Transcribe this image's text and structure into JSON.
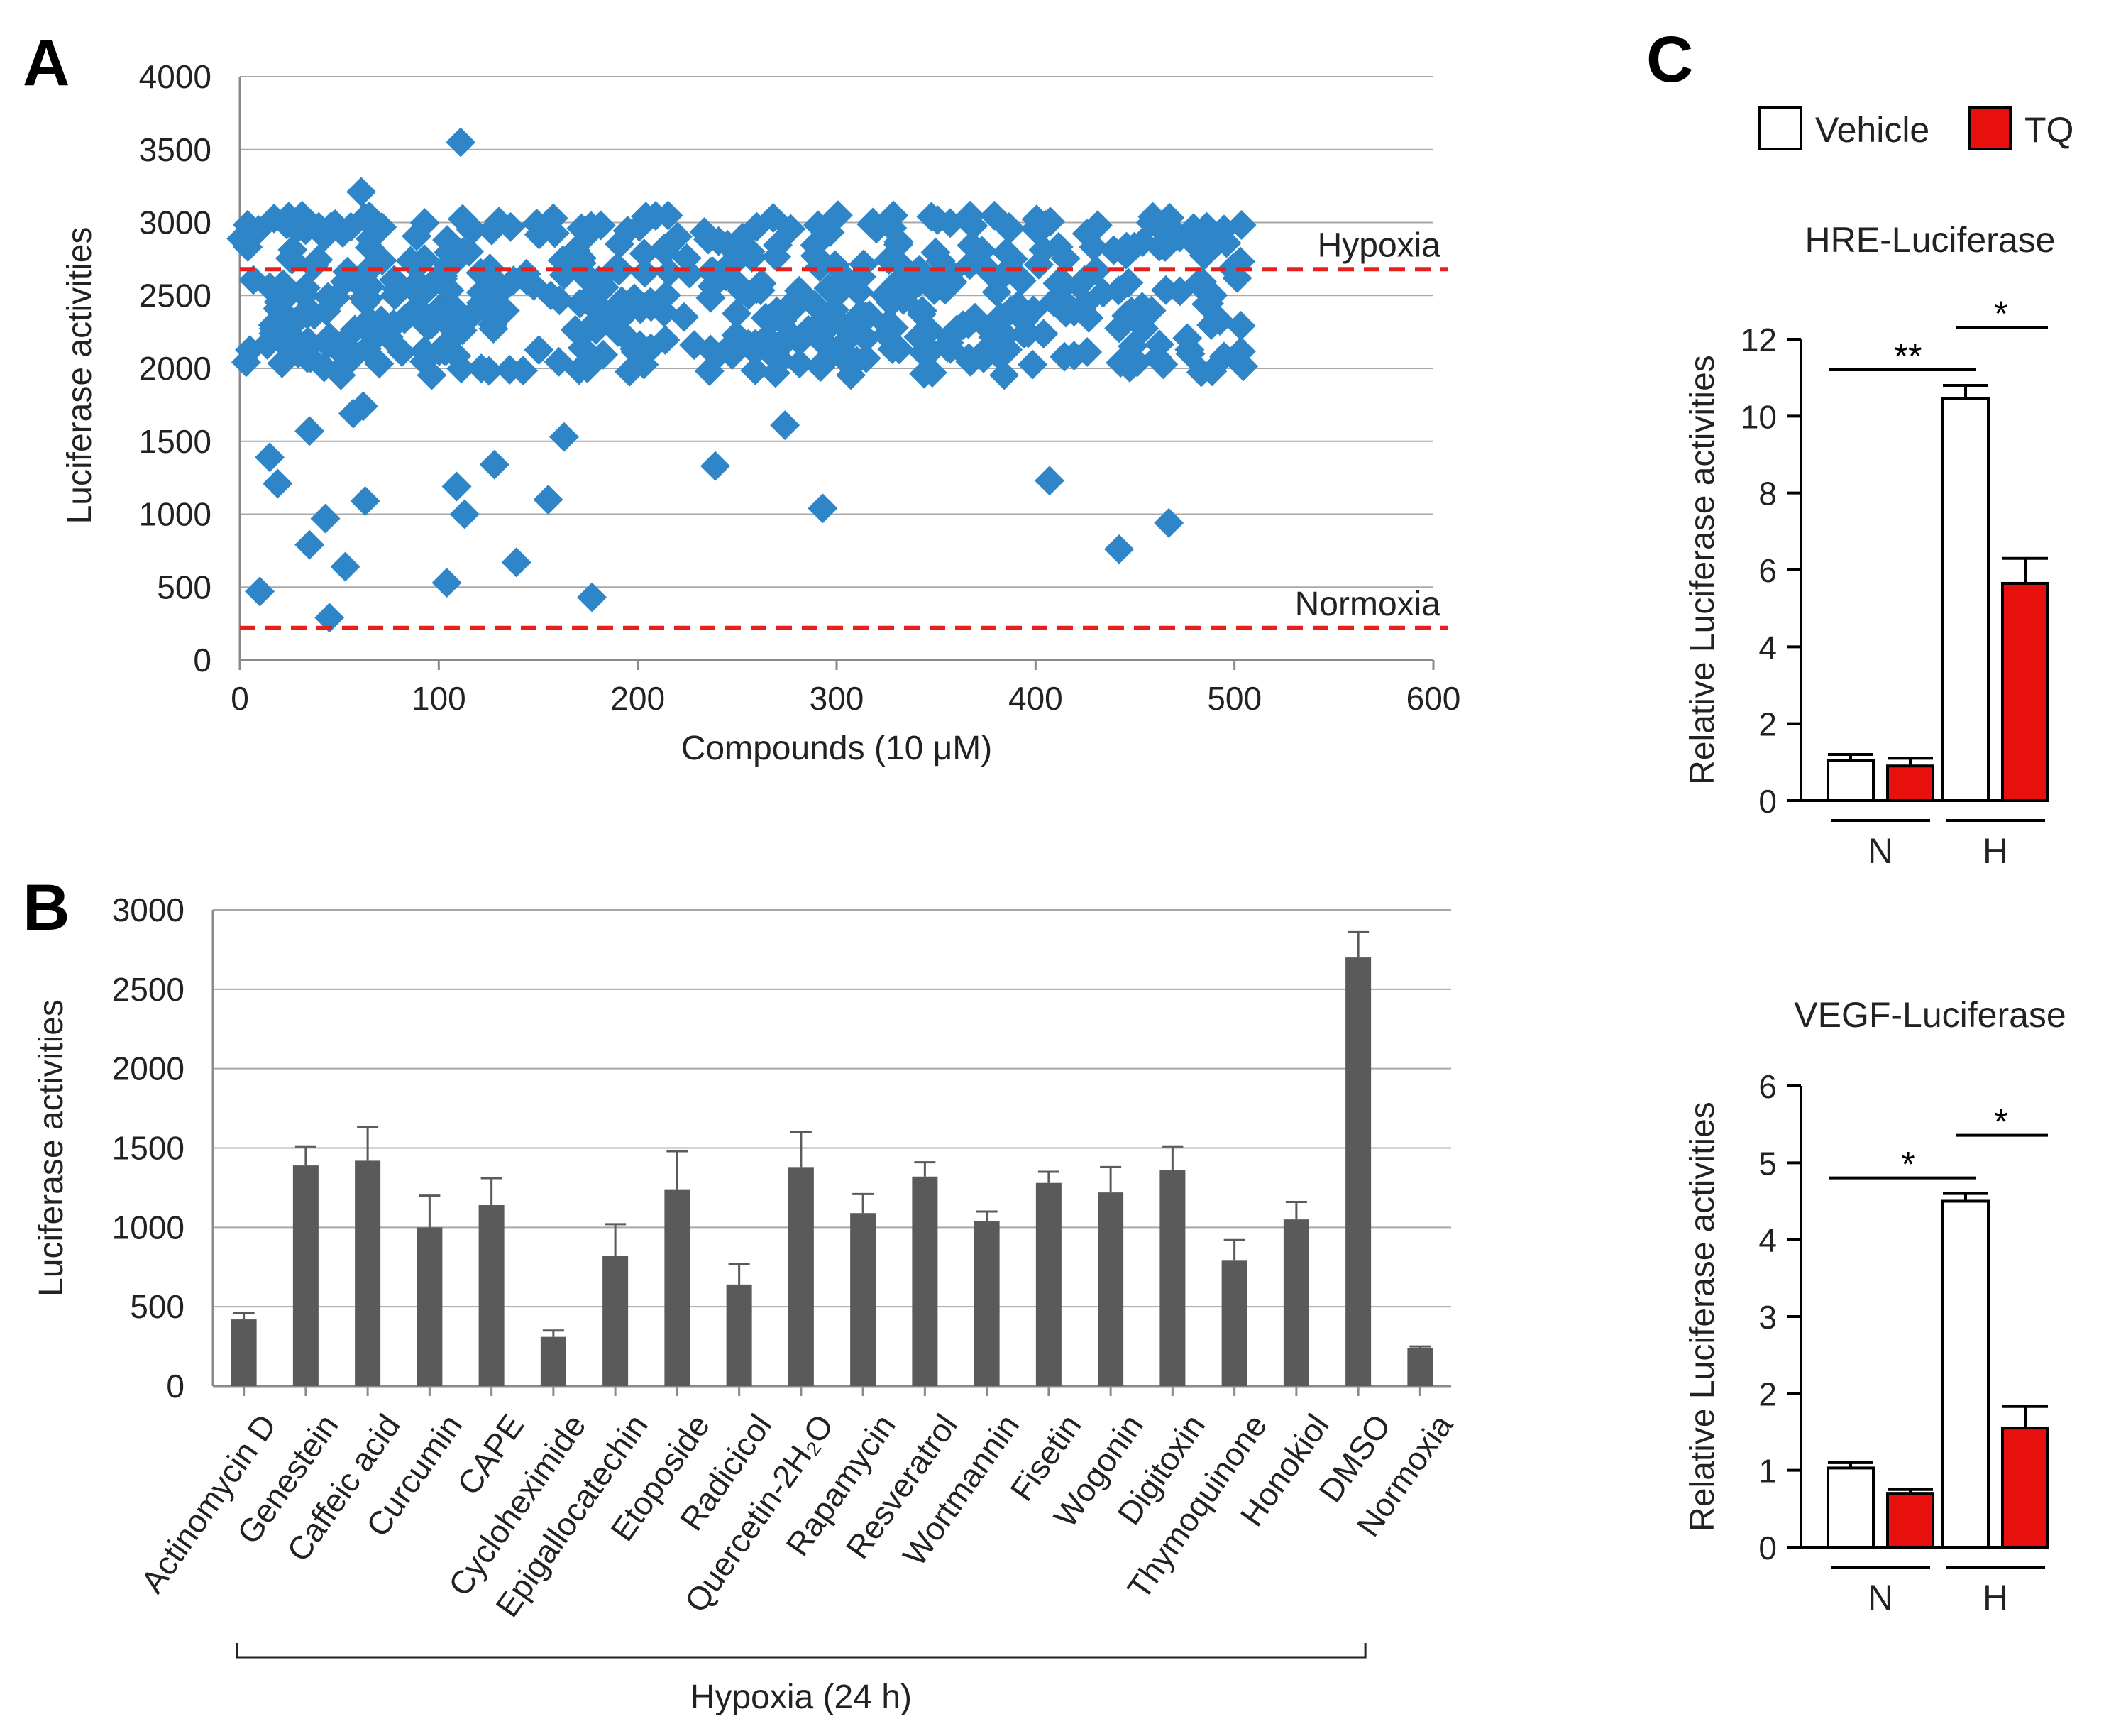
{
  "panels": {
    "a": "A",
    "b": "B",
    "c": "C"
  },
  "chart_data": [
    {
      "id": "A",
      "type": "scatter",
      "xlabel": "Compounds (10 μM)",
      "ylabel": "Luciferase activities",
      "xlim": [
        0,
        600
      ],
      "ylim": [
        0,
        4000
      ],
      "xticks": [
        0,
        100,
        200,
        300,
        400,
        500,
        600
      ],
      "yticks": [
        0,
        500,
        1000,
        1500,
        2000,
        2500,
        3000,
        3500,
        4000
      ],
      "grid": "horizontal",
      "marker_color": "#2e86c8",
      "reference_lines": [
        {
          "label": "Hypoxia",
          "y": 2680,
          "color": "#e8201c"
        },
        {
          "label": "Normoxia",
          "y": 220,
          "color": "#e8201c"
        }
      ],
      "outliers": [
        [
          10,
          470
        ],
        [
          15,
          1390
        ],
        [
          19,
          1210
        ],
        [
          35,
          1570
        ],
        [
          35,
          790
        ],
        [
          43,
          970
        ],
        [
          45,
          290
        ],
        [
          53,
          640
        ],
        [
          57,
          1690
        ],
        [
          62,
          1740
        ],
        [
          61,
          3210
        ],
        [
          63,
          1090
        ],
        [
          104,
          530
        ],
        [
          109,
          1190
        ],
        [
          111,
          3550
        ],
        [
          113,
          1000
        ],
        [
          128,
          1340
        ],
        [
          139,
          670
        ],
        [
          155,
          1100
        ],
        [
          163,
          1530
        ],
        [
          177,
          430
        ],
        [
          239,
          1330
        ],
        [
          274,
          1610
        ],
        [
          293,
          1040
        ],
        [
          407,
          1230
        ],
        [
          442,
          760
        ],
        [
          467,
          940
        ]
      ],
      "main_cluster": {
        "n": 500,
        "x_range": [
          0,
          505
        ],
        "y_range": [
          1950,
          3050
        ]
      }
    },
    {
      "id": "B",
      "type": "bar",
      "ylabel": "Luciferase activities",
      "ylim": [
        0,
        3000
      ],
      "yticks": [
        0,
        500,
        1000,
        1500,
        2000,
        2500,
        3000
      ],
      "grid": "horizontal",
      "bar_color": "#5a5a5a",
      "categories": [
        "Actinomycin D",
        "Genestein",
        "Caffeic acid",
        "Curcumin",
        "CAPE",
        "Cycloheximide",
        "Epigallocatechin",
        "Etoposide",
        "Radicicol",
        "Quercetin-2H₂O",
        "Rapamycin",
        "Resveratrol",
        "Wortmannin",
        "Fisetin",
        "Wogonin",
        "Digitoxin",
        "Thymoquinone",
        "Honokiol",
        "DMSO",
        "Normoxia"
      ],
      "values": [
        420,
        1390,
        1420,
        1000,
        1140,
        310,
        820,
        1240,
        640,
        1380,
        1090,
        1320,
        1040,
        1280,
        1220,
        1360,
        790,
        1050,
        2700,
        240
      ],
      "errors": [
        40,
        120,
        210,
        200,
        170,
        40,
        200,
        240,
        130,
        220,
        120,
        90,
        60,
        70,
        160,
        150,
        130,
        110,
        160,
        10
      ],
      "bracket_label": "Hypoxia (24 h)"
    },
    {
      "id": "C-top",
      "type": "bar",
      "title": "HRE-Luciferase",
      "ylabel": "Relative Luciferase activities",
      "ylim": [
        0,
        12
      ],
      "yticks": [
        0,
        2,
        4,
        6,
        8,
        10,
        12
      ],
      "groups": [
        "N",
        "H"
      ],
      "series": [
        {
          "name": "Vehicle",
          "values": [
            1.05,
            10.45
          ],
          "errors": [
            0.15,
            0.35
          ]
        },
        {
          "name": "TQ",
          "values": [
            0.9,
            5.65
          ],
          "errors": [
            0.2,
            0.65
          ]
        }
      ],
      "significance": [
        {
          "label": "**",
          "between": "N-Vehicle vs H-Vehicle"
        },
        {
          "label": "*",
          "between": "H-Vehicle vs H-TQ"
        }
      ]
    },
    {
      "id": "C-bottom",
      "type": "bar",
      "title": "VEGF-Luciferase",
      "ylabel": "Relative Luciferase activities",
      "ylim": [
        0,
        6
      ],
      "yticks": [
        0,
        1,
        2,
        3,
        4,
        5,
        6
      ],
      "groups": [
        "N",
        "H"
      ],
      "series": [
        {
          "name": "Vehicle",
          "values": [
            1.03,
            4.5
          ],
          "errors": [
            0.07,
            0.1
          ]
        },
        {
          "name": "TQ",
          "values": [
            0.7,
            1.55
          ],
          "errors": [
            0.05,
            0.28
          ]
        }
      ],
      "significance": [
        {
          "label": "*",
          "between": "N-Vehicle vs H-Vehicle"
        },
        {
          "label": "*",
          "between": "H-Vehicle vs H-TQ"
        }
      ]
    }
  ],
  "legend": [
    {
      "name": "Vehicle",
      "color": "#ffffff"
    },
    {
      "name": "TQ",
      "color": "#e8100c"
    }
  ]
}
